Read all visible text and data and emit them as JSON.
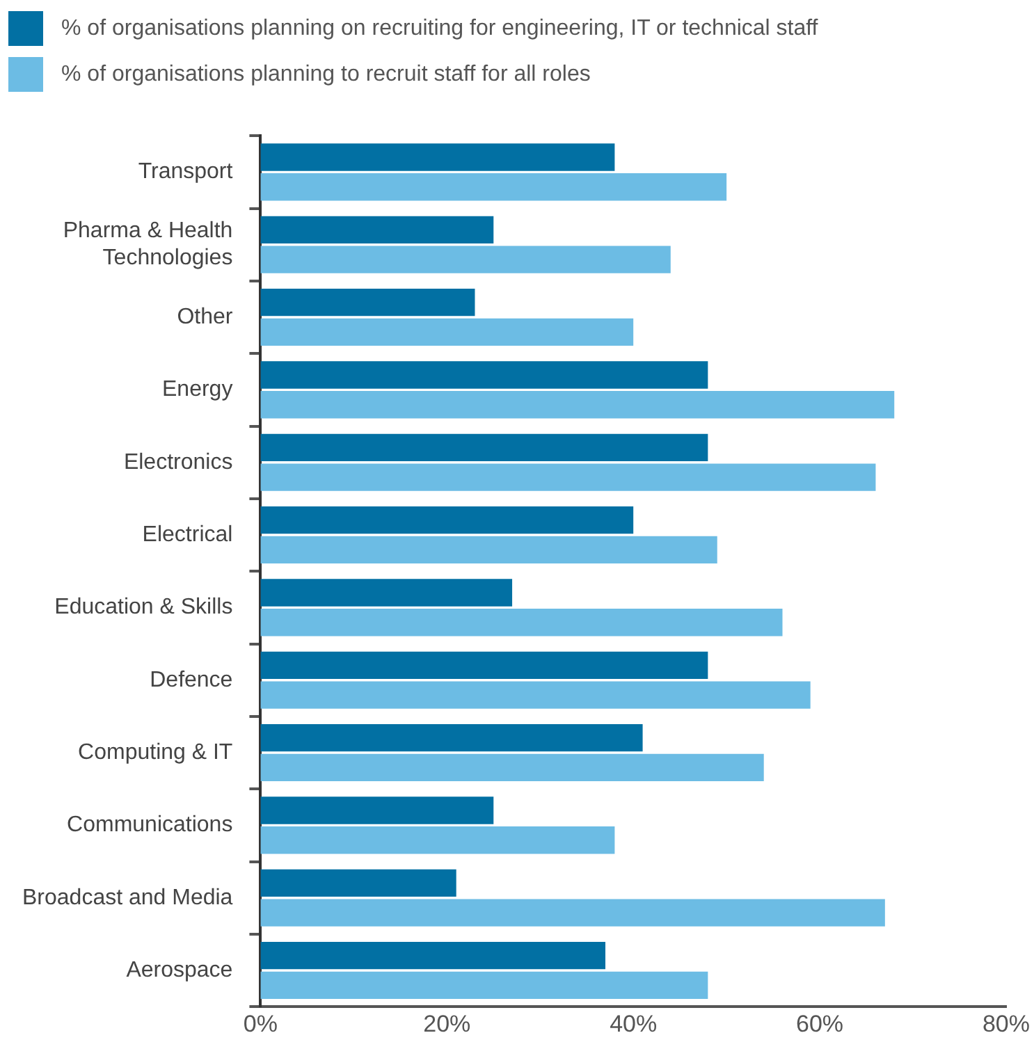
{
  "chart_data": {
    "type": "bar",
    "orientation": "horizontal",
    "categories": [
      "Transport",
      "Pharma & Health Technologies",
      "Other",
      "Energy",
      "Electronics",
      "Electrical",
      "Education & Skills",
      "Defence",
      "Computing & IT",
      "Communications",
      "Broadcast and Media",
      "Aerospace"
    ],
    "series": [
      {
        "name": "% of organisations planning on recruiting for engineering, IT or technical staff",
        "color": "#0270a3",
        "values": [
          38,
          25,
          23,
          48,
          48,
          40,
          27,
          48,
          41,
          25,
          21,
          37
        ]
      },
      {
        "name": "% of organisations planning to recruit staff for all roles",
        "color": "#6cbce4",
        "values": [
          50,
          44,
          40,
          68,
          66,
          49,
          56,
          59,
          54,
          38,
          67,
          48
        ]
      }
    ],
    "xlim": [
      0,
      80
    ],
    "xticks": [
      {
        "value": 0,
        "label": "0%"
      },
      {
        "value": 20,
        "label": "20%"
      },
      {
        "value": 40,
        "label": "40%"
      },
      {
        "value": 60,
        "label": "60%"
      },
      {
        "value": 80,
        "label": "80%"
      }
    ],
    "grid": false,
    "legend": "top left"
  }
}
